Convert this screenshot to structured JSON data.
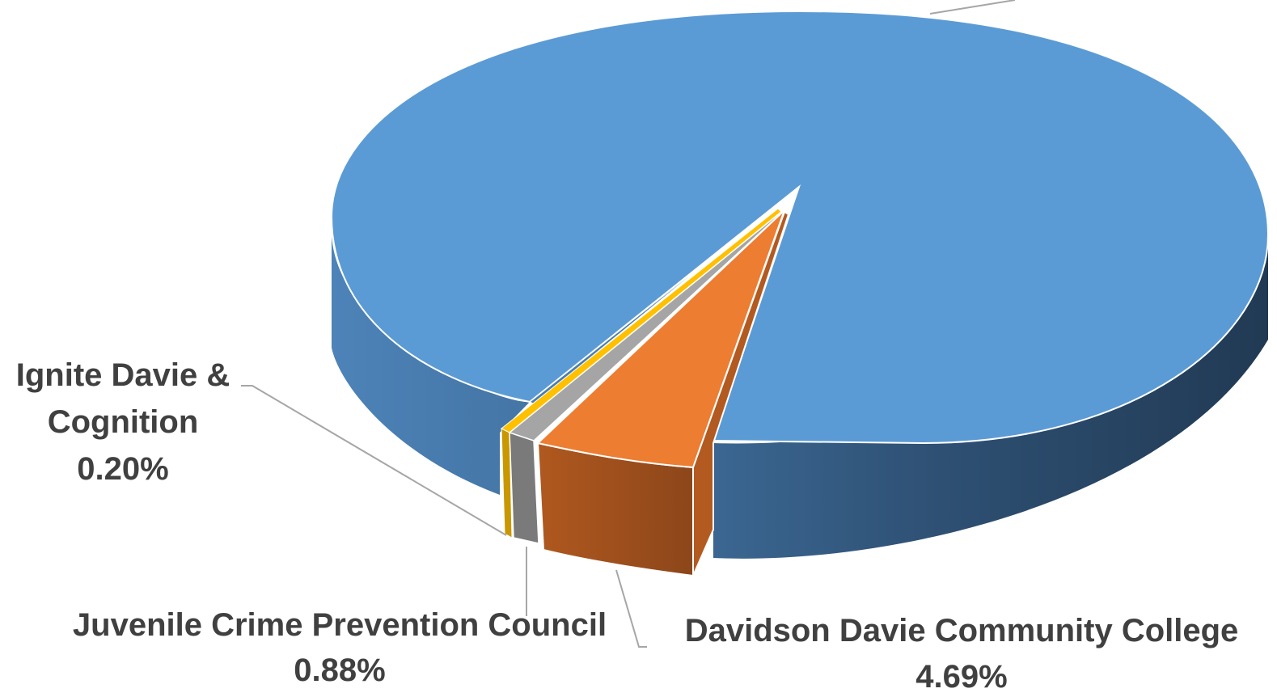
{
  "chart_data": {
    "type": "pie",
    "style": "3d-exploded",
    "slices": [
      {
        "key": "main",
        "name": "",
        "value": 94.23,
        "percent_label": "",
        "color": "#5B9BD5",
        "side_color_light": "#4A7EB0",
        "side_color_dark": "#253D56"
      },
      {
        "key": "ddcc",
        "name": "Davidson Davie Community College",
        "value": 4.69,
        "percent_label": "4.69%",
        "color": "#ED7D31",
        "side_color_light": "#A9531F",
        "side_color_dark": "#8A451A"
      },
      {
        "key": "jcpc",
        "name": "Juvenile Crime Prevention Council",
        "value": 0.88,
        "percent_label": "0.88%",
        "color": "#A5A5A5",
        "side_color_light": "#8A8A8A",
        "side_color_dark": "#6E6E6E"
      },
      {
        "key": "ignite",
        "name": "Ignite Davie & Cognition",
        "name_lines": [
          "Ignite Davie &",
          "Cognition"
        ],
        "value": 0.2,
        "percent_label": "0.20%",
        "color": "#FFC000",
        "side_color_light": "#C99700",
        "side_color_dark": "#B08400"
      }
    ],
    "legend": "none",
    "leader_line_color": "#A6A6A6",
    "label_color": "#404040"
  }
}
